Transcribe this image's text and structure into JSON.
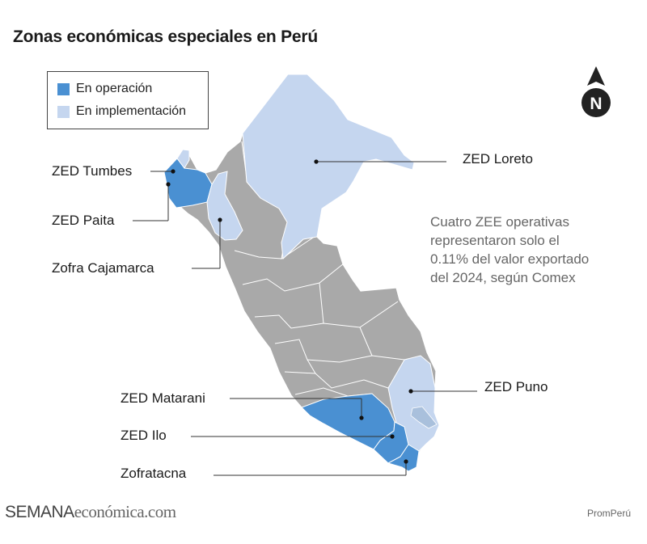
{
  "title": "Zonas económicas especiales en Perú",
  "legend": {
    "items": [
      {
        "label": "En operación",
        "color": "#4a90d2"
      },
      {
        "label": "En implementación",
        "color": "#c5d6ef"
      }
    ]
  },
  "compass": {
    "letter": "N"
  },
  "zones": {
    "tumbes": "ZED Tumbes",
    "paita": "ZED Paita",
    "cajamarca": "Zofra Cajamarca",
    "loreto": "ZED Loreto",
    "puno": "ZED Puno",
    "matarani": "ZED Matarani",
    "ilo": "ZED Ilo",
    "zofratacna": "Zofratacna"
  },
  "note": {
    "lines": [
      "Cuatro ZEE operativas",
      "representaron solo el",
      "0.11% del valor exportado",
      "del 2024, según Comex"
    ]
  },
  "footer": {
    "brand_a": "SEMANA",
    "brand_b": "económica.com",
    "source": "PromPerú"
  },
  "colors": {
    "operation": "#4a90d2",
    "implementation": "#c5d6ef",
    "country": "#a9a9a9",
    "borders": "#ffffff"
  }
}
